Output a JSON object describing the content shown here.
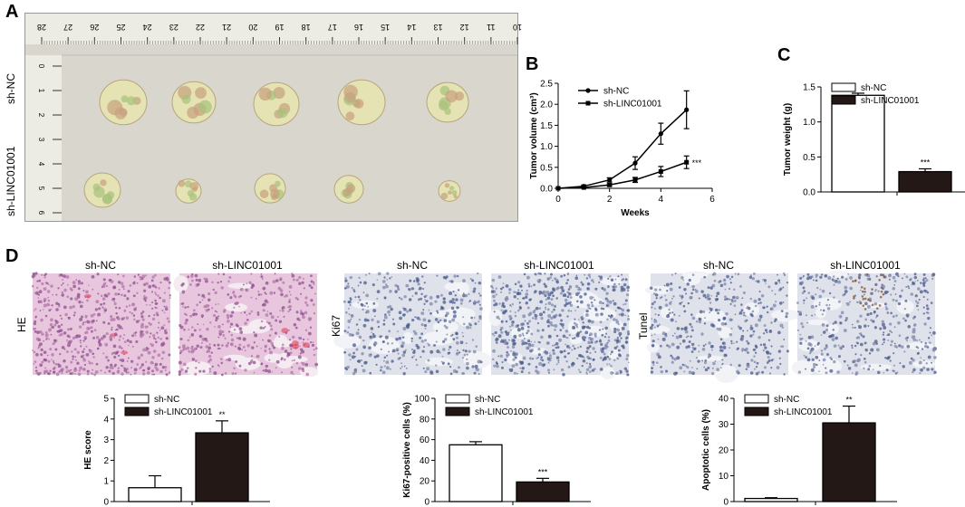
{
  "panels": {
    "a": "A",
    "b": "B",
    "c": "C",
    "d": "D"
  },
  "photo_a": {
    "row_labels": [
      "sh-NC",
      "sh-LINC01001"
    ],
    "ruler_top_ticks": [
      "28",
      "27",
      "26",
      "25",
      "24",
      "23",
      "22",
      "21",
      "20",
      "19",
      "18",
      "17",
      "16",
      "15",
      "14",
      "13",
      "12",
      "11",
      "10"
    ],
    "ruler_left_ticks": [
      "0",
      "1",
      "2",
      "3",
      "4",
      "5",
      "6"
    ]
  },
  "histology": {
    "column_titles": [
      "sh-NC",
      "sh-LINC01001"
    ],
    "groups": [
      {
        "stain": "HE"
      },
      {
        "stain": "Ki67"
      },
      {
        "stain": "Tunel"
      }
    ]
  },
  "colors": {
    "sh_nc": "#ffffff",
    "sh_linc01001": "#231815",
    "he_tissue": "#d6a3c8",
    "ihc_tissue": "#c4ccdd"
  },
  "chart_data": [
    {
      "id": "B",
      "type": "line",
      "xlabel": "Weeks",
      "ylabel": "Tumor volume (cm³)",
      "xlim": [
        0,
        6
      ],
      "ylim": [
        0,
        2.5
      ],
      "xticks": [
        "0",
        "2",
        "4",
        "6"
      ],
      "yticks": [
        "0.0",
        "0.5",
        "1.0",
        "1.5",
        "2.0",
        "2.5"
      ],
      "series": [
        {
          "name": "sh-NC",
          "x": [
            0,
            1,
            2,
            3,
            4,
            5
          ],
          "y": [
            0.0,
            0.05,
            0.2,
            0.6,
            1.3,
            1.87
          ],
          "err": [
            0.0,
            0.03,
            0.05,
            0.15,
            0.25,
            0.45
          ]
        },
        {
          "name": "sh-LINC01001",
          "x": [
            0,
            1,
            2,
            3,
            4,
            5
          ],
          "y": [
            0.0,
            0.02,
            0.08,
            0.2,
            0.4,
            0.62
          ],
          "err": [
            0.0,
            0.01,
            0.03,
            0.06,
            0.12,
            0.15
          ]
        }
      ],
      "annotation": "***",
      "legend": "top-left"
    },
    {
      "id": "C",
      "type": "bar",
      "ylabel": "Tumor weight (g)",
      "ylim": [
        0,
        1.5
      ],
      "yticks": [
        "0.0",
        "0.5",
        "1.0",
        "1.5"
      ],
      "categories": [
        "sh-NC",
        "sh-LINC01001"
      ],
      "values": [
        1.38,
        0.29
      ],
      "errors": [
        0.03,
        0.04
      ],
      "annotation": "***",
      "legend": "top-left"
    },
    {
      "id": "D-HE",
      "type": "bar",
      "ylabel": "HE score",
      "ylim": [
        0,
        5
      ],
      "yticks": [
        "0",
        "1",
        "2",
        "3",
        "4",
        "5"
      ],
      "categories": [
        "sh-NC",
        "sh-LINC01001"
      ],
      "values": [
        0.67,
        3.33
      ],
      "errors": [
        0.58,
        0.58
      ],
      "annotation": "**",
      "legend": "top-left"
    },
    {
      "id": "D-Ki67",
      "type": "bar",
      "ylabel": "Ki67-positive cells (%)",
      "ylim": [
        0,
        100
      ],
      "yticks": [
        "0",
        "20",
        "40",
        "60",
        "80",
        "100"
      ],
      "categories": [
        "sh-NC",
        "sh-LINC01001"
      ],
      "values": [
        55,
        19
      ],
      "errors": [
        3,
        3.5
      ],
      "annotation": "***",
      "legend": "top-left"
    },
    {
      "id": "D-Apoptotic",
      "type": "bar",
      "ylabel": "Apoptotic cells (%)",
      "ylim": [
        0,
        40
      ],
      "yticks": [
        "0",
        "10",
        "20",
        "30",
        "40"
      ],
      "categories": [
        "sh-NC",
        "sh-LINC01001"
      ],
      "values": [
        1.2,
        30.5
      ],
      "errors": [
        0.3,
        6.5
      ],
      "annotation": "**",
      "legend": "top-left"
    }
  ]
}
